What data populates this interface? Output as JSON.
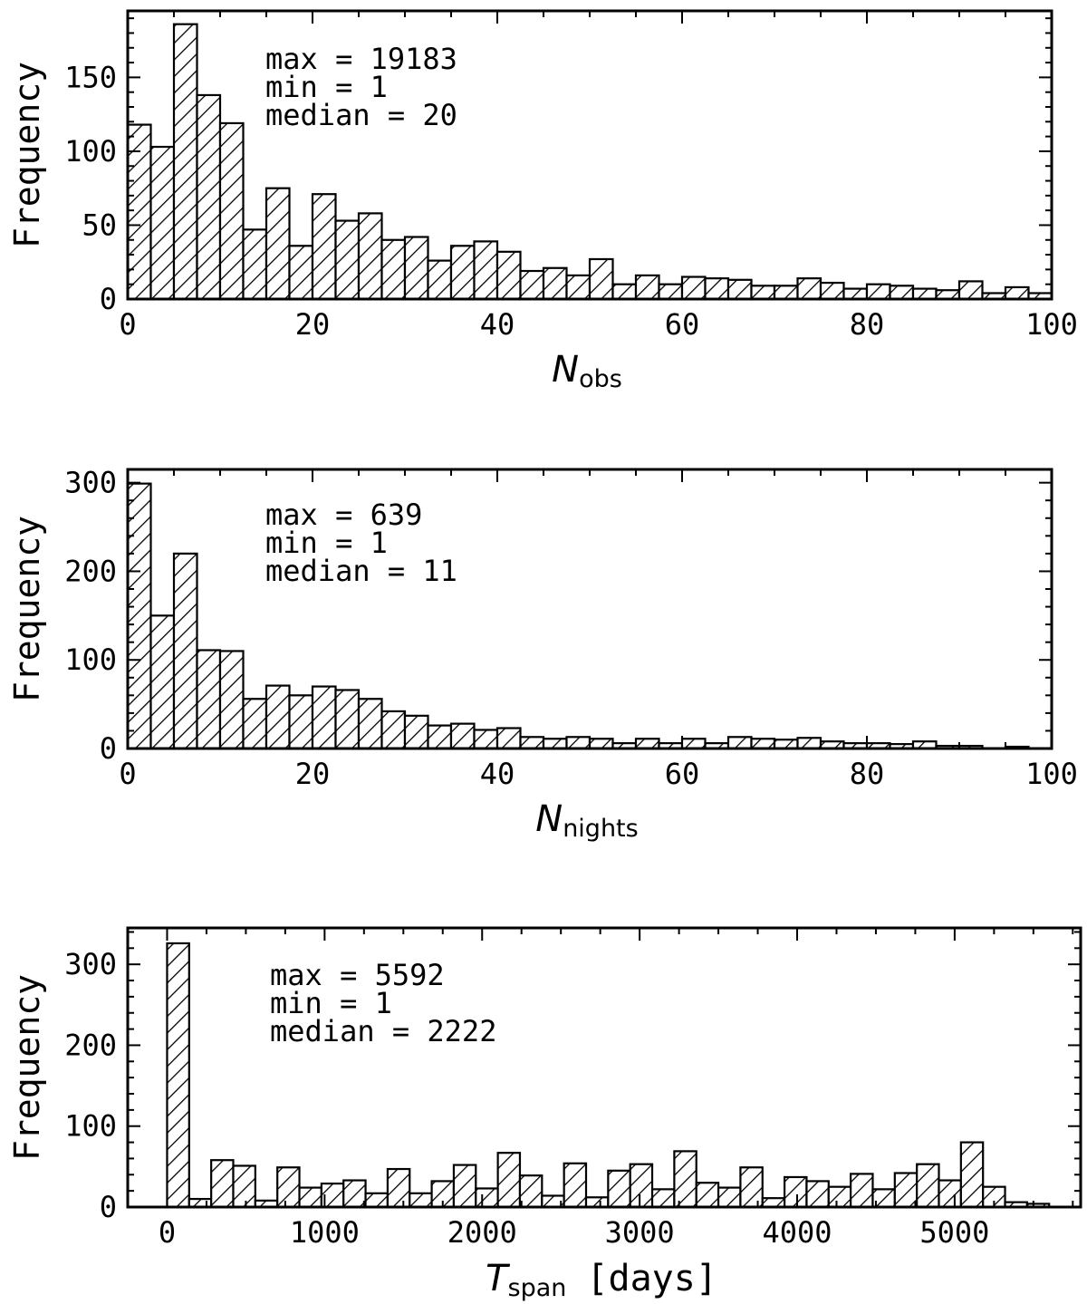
{
  "chart_data": [
    {
      "type": "bar",
      "ylabel": "Frequency",
      "xlabel": {
        "main": "N",
        "sub": "obs",
        "unit": ""
      },
      "xlim": [
        0,
        100
      ],
      "ylim": [
        0,
        195
      ],
      "xticks": [
        0,
        20,
        40,
        60,
        80,
        100
      ],
      "yticks": [
        0,
        50,
        100,
        150
      ],
      "bin_width": 2.5,
      "bin_start": 0,
      "values": [
        118,
        103,
        186,
        138,
        119,
        47,
        75,
        36,
        71,
        53,
        58,
        40,
        42,
        26,
        36,
        39,
        32,
        19,
        21,
        16,
        27,
        10,
        16,
        10,
        15,
        14,
        13,
        9,
        9,
        14,
        11,
        7,
        10,
        9,
        7,
        6,
        12,
        4,
        8,
        4
      ],
      "annotations": [
        "max = 19183",
        "min = 1",
        "median = 20"
      ]
    },
    {
      "type": "bar",
      "ylabel": "Frequency",
      "xlabel": {
        "main": "N",
        "sub": "nights",
        "unit": ""
      },
      "xlim": [
        0,
        100
      ],
      "ylim": [
        0,
        315
      ],
      "xticks": [
        0,
        20,
        40,
        60,
        80,
        100
      ],
      "yticks": [
        0,
        100,
        200,
        300
      ],
      "bin_width": 2.5,
      "bin_start": 0,
      "values": [
        299,
        150,
        220,
        111,
        110,
        56,
        71,
        60,
        70,
        66,
        56,
        42,
        37,
        26,
        28,
        21,
        23,
        13,
        11,
        13,
        11,
        6,
        11,
        6,
        11,
        6,
        13,
        11,
        10,
        12,
        8,
        6,
        6,
        5,
        8,
        3,
        3,
        0,
        2,
        0
      ],
      "annotations": [
        "max = 639",
        "min = 1",
        "median = 11"
      ]
    },
    {
      "type": "bar",
      "ylabel": "Frequency",
      "xlabel": {
        "main": "T",
        "sub": "span",
        "unit": "[days]"
      },
      "xlim": [
        -250,
        5800
      ],
      "ylim": [
        0,
        345
      ],
      "xticks": [
        0,
        1000,
        2000,
        3000,
        4000,
        5000
      ],
      "yticks": [
        0,
        100,
        200,
        300
      ],
      "bin_width": 140,
      "bin_start": 0,
      "values": [
        326,
        10,
        58,
        51,
        8,
        49,
        24,
        29,
        33,
        17,
        47,
        17,
        32,
        52,
        23,
        67,
        39,
        14,
        54,
        12,
        45,
        53,
        22,
        69,
        30,
        24,
        49,
        11,
        37,
        32,
        25,
        41,
        22,
        42,
        53,
        33,
        80,
        25,
        6,
        4
      ],
      "annotations": [
        "max = 5592",
        "min = 1",
        "median = 2222"
      ]
    }
  ]
}
